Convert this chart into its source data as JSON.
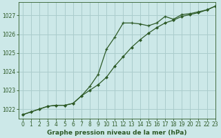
{
  "title": "Graphe pression niveau de la mer (hPa)",
  "background_color": "#cce8e8",
  "grid_color": "#aacccc",
  "line_color": "#2d5a27",
  "xlim": [
    -0.5,
    23
  ],
  "ylim": [
    1021.5,
    1027.7
  ],
  "yticks": [
    1022,
    1023,
    1024,
    1025,
    1026,
    1027
  ],
  "xticks": [
    0,
    1,
    2,
    3,
    4,
    5,
    6,
    7,
    8,
    9,
    10,
    11,
    12,
    13,
    14,
    15,
    16,
    17,
    18,
    19,
    20,
    21,
    22,
    23
  ],
  "series_cross_x": [
    0,
    1,
    2,
    3,
    4,
    5,
    6,
    7,
    8,
    9,
    10,
    11,
    12,
    13,
    14,
    15,
    16,
    17,
    18,
    19,
    20,
    21,
    22,
    23
  ],
  "series_cross_y": [
    1021.7,
    1021.85,
    1022.0,
    1022.15,
    1022.2,
    1022.2,
    1022.3,
    1022.7,
    1023.2,
    1023.85,
    1025.2,
    1025.85,
    1026.6,
    1026.6,
    1026.55,
    1026.45,
    1026.6,
    1026.95,
    1026.8,
    1027.05,
    1027.1,
    1027.2,
    1027.3,
    1027.5
  ],
  "series_diamond_x": [
    0,
    1,
    2,
    3,
    4,
    5,
    6,
    7,
    8,
    9,
    10,
    11,
    12,
    13,
    14,
    15,
    16,
    17,
    18,
    19,
    20,
    21,
    22,
    23
  ],
  "series_diamond_y": [
    1021.7,
    1021.85,
    1022.0,
    1022.15,
    1022.2,
    1022.2,
    1022.3,
    1022.7,
    1023.0,
    1023.3,
    1023.7,
    1024.3,
    1024.8,
    1025.3,
    1025.7,
    1026.05,
    1026.35,
    1026.6,
    1026.75,
    1026.95,
    1027.05,
    1027.15,
    1027.3,
    1027.5
  ],
  "ylabel_fontsize": 5.5,
  "xlabel_fontsize": 6.5,
  "tick_labelsize": 5.5
}
